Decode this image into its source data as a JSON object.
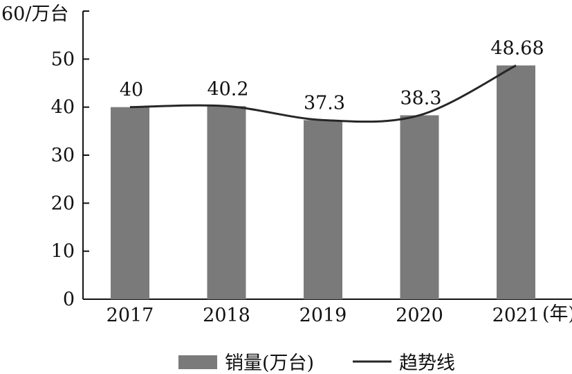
{
  "chart_data": {
    "type": "bar",
    "categories": [
      "2017",
      "2018",
      "2019",
      "2020",
      "2021"
    ],
    "series": [
      {
        "name": "销量(万台)",
        "type": "bar",
        "values": [
          40,
          40.2,
          37.3,
          38.3,
          48.68
        ],
        "color": "#7a7a7a"
      },
      {
        "name": "趋势线",
        "type": "line",
        "values": [
          40,
          40.2,
          37.3,
          38.3,
          48.68
        ],
        "color": "#262626"
      }
    ],
    "data_labels": [
      "40",
      "40.2",
      "37.3",
      "38.3",
      "48.68"
    ],
    "y_ticks": [
      "0",
      "10",
      "20",
      "30",
      "40",
      "50"
    ],
    "y_top_label": "60/万台",
    "x_unit": "(年)",
    "ylim": [
      0,
      60
    ],
    "legend_position": "bottom"
  }
}
